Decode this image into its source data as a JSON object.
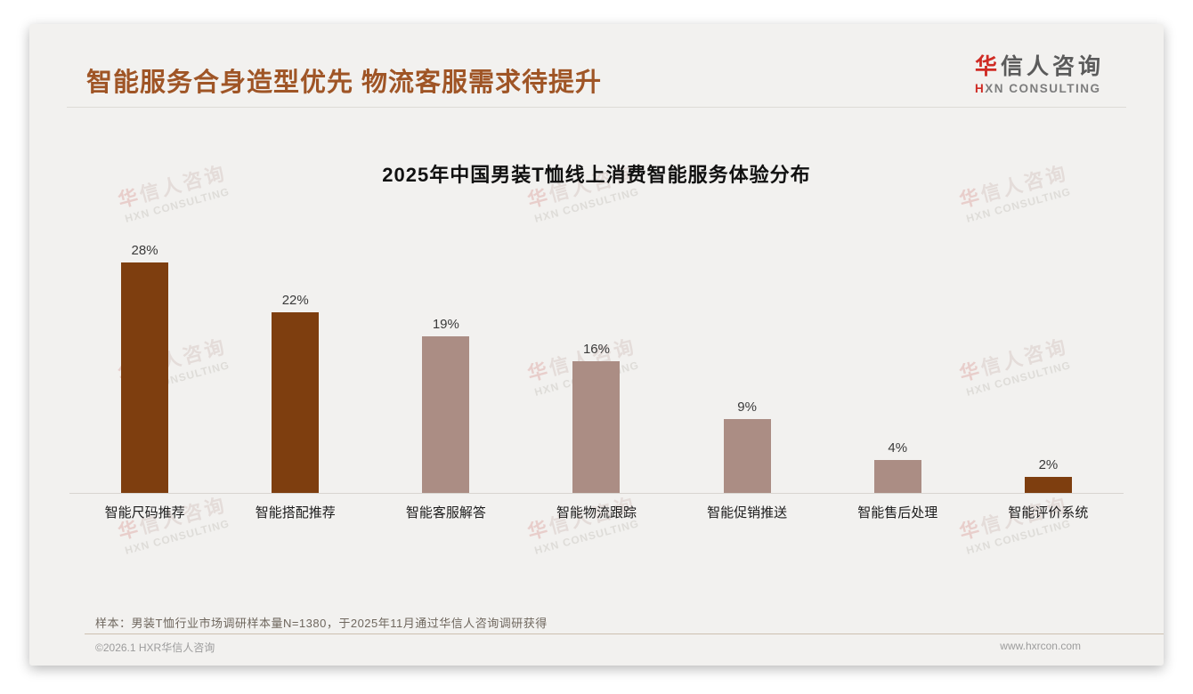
{
  "header": {
    "title": "智能服务合身造型优先 物流客服需求待提升",
    "logo": {
      "cn_red": "华",
      "cn_rest": "信人咨询",
      "en_red": "H",
      "en_rest": "XN CONSULTING"
    }
  },
  "watermark": {
    "cn_red": "华",
    "cn_rest": "信人咨询",
    "en": "HXN CONSULTING"
  },
  "chart_data": {
    "type": "bar",
    "title": "2025年中国男装T恤线上消费智能服务体验分布",
    "categories": [
      "智能尺码推荐",
      "智能搭配推荐",
      "智能客服解答",
      "智能物流跟踪",
      "智能促销推送",
      "智能售后处理",
      "智能评价系统"
    ],
    "values": [
      28,
      22,
      19,
      16,
      9,
      4,
      2
    ],
    "unit": "%",
    "value_labels": [
      "28%",
      "22%",
      "19%",
      "16%",
      "9%",
      "4%",
      "2%"
    ],
    "highlight_indices": [
      0,
      1,
      6
    ],
    "colors": {
      "highlight": "#7e3e0f",
      "normal": "#ab8d84"
    },
    "ylim": [
      0,
      30
    ],
    "grid": false,
    "legend": "none"
  },
  "note": "样本：男装T恤行业市场调研样本量N=1380，于2025年11月通过华信人咨询调研获得",
  "footer": {
    "left": "©2026.1 HXR华信人咨询",
    "right": "www.hxrcon.com"
  }
}
